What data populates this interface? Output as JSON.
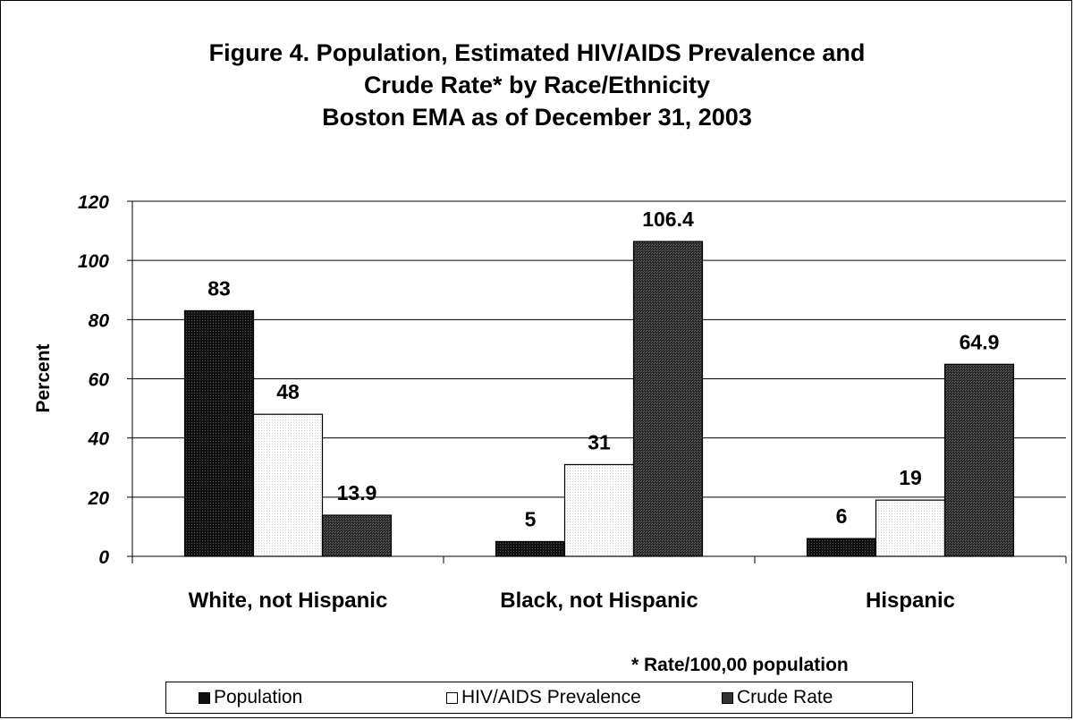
{
  "chart_data": {
    "type": "bar",
    "title_lines": [
      "Figure 4. Population, Estimated HIV/AIDS Prevalence and",
      "Crude Rate* by Race/Ethnicity",
      "Boston EMA as of December 31, 2003"
    ],
    "xlabel": "",
    "ylabel": "Percent",
    "ylim": [
      0,
      120
    ],
    "yticks": [
      "0",
      "20",
      "40",
      "60",
      "80",
      "100",
      "120"
    ],
    "grid": true,
    "legend_position": "bottom",
    "categories": [
      "White, not Hispanic",
      "Black, not Hispanic",
      "Hispanic"
    ],
    "series": [
      {
        "name": "Population",
        "values": [
          83,
          5,
          6
        ],
        "labels": [
          "83",
          "5",
          "6"
        ],
        "color": "#222222",
        "pattern": "dark"
      },
      {
        "name": "HIV/AIDS Prevalence",
        "values": [
          48,
          31,
          19
        ],
        "labels": [
          "48",
          "31",
          "19"
        ],
        "color": "#ffffff",
        "pattern": "light"
      },
      {
        "name": "Crude Rate",
        "values": [
          13.9,
          106.4,
          64.9
        ],
        "labels": [
          "13.9",
          "106.4",
          "64.9"
        ],
        "color": "#333333",
        "pattern": "mid"
      }
    ],
    "footnote": "* Rate/100,00 population"
  }
}
